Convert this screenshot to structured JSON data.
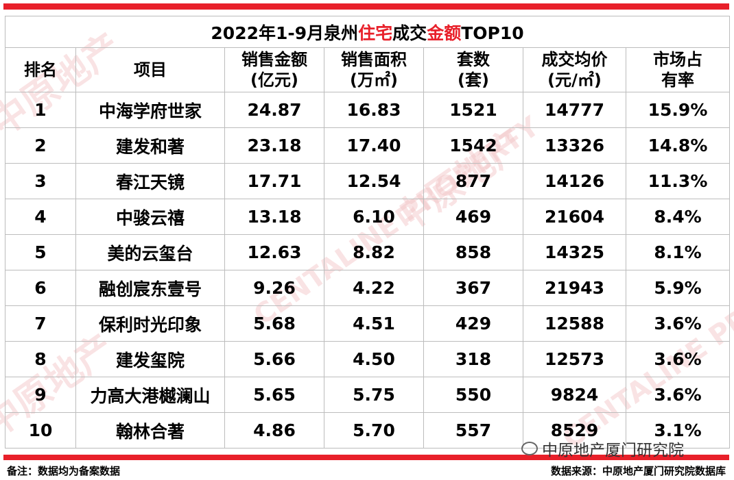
{
  "title": {
    "prefix": "2022年1-9月泉州",
    "highlight1": "住宅",
    "middle": "成交",
    "highlight2": "金额",
    "suffix": "TOP10"
  },
  "watermark": {
    "text1": "中原地产",
    "text2": "CENTALINE PROPERTY"
  },
  "colors": {
    "accent_red": "#e8202a"
  },
  "chart_data": {
    "type": "table",
    "headers": [
      [
        "排名"
      ],
      [
        "项目"
      ],
      [
        "销售金额",
        "(亿元)"
      ],
      [
        "销售面积",
        "(万㎡)"
      ],
      [
        "套数",
        "(套)"
      ],
      [
        "成交均价",
        "(元/㎡)"
      ],
      [
        "市场占",
        "有率"
      ]
    ],
    "rows": [
      [
        "1",
        "中海学府世家",
        "24.87",
        "16.83",
        "1521",
        "14777",
        "15.9%"
      ],
      [
        "2",
        "建发和著",
        "23.18",
        "17.40",
        "1542",
        "13326",
        "14.8%"
      ],
      [
        "3",
        "春江天镜",
        "17.71",
        "12.54",
        "877",
        "14126",
        "11.3%"
      ],
      [
        "4",
        "中骏云禧",
        "13.18",
        "6.10",
        "469",
        "21604",
        "8.4%"
      ],
      [
        "5",
        "美的云玺台",
        "12.63",
        "8.82",
        "858",
        "14325",
        "8.1%"
      ],
      [
        "6",
        "融创宸东壹号",
        "9.26",
        "4.22",
        "367",
        "21943",
        "5.9%"
      ],
      [
        "7",
        "保利时光印象",
        "5.68",
        "4.51",
        "429",
        "12588",
        "3.6%"
      ],
      [
        "8",
        "建发玺院",
        "5.66",
        "4.50",
        "318",
        "12573",
        "3.6%"
      ],
      [
        "9",
        "力高大港樾澜山",
        "5.65",
        "5.75",
        "550",
        "9824",
        "3.6%"
      ],
      [
        "10",
        "翰林合著",
        "4.86",
        "5.70",
        "557",
        "8529",
        "3.1%"
      ]
    ]
  },
  "footer": {
    "note": "备注：数据均为备案数据",
    "source": "数据来源：中原地产厦门研究院数据库"
  },
  "overlay": {
    "account": "中原地产厦门研究院"
  }
}
